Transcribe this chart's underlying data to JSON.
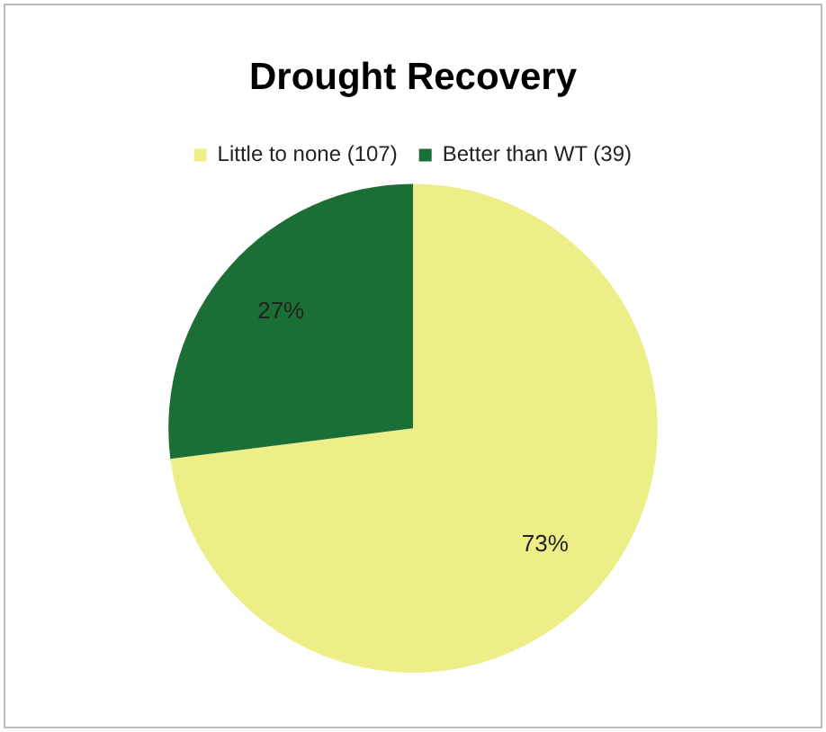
{
  "chart_data": {
    "type": "pie",
    "title": "Drought Recovery",
    "categories": [
      "Little to none (107)",
      "Better than WT (39)"
    ],
    "values": [
      73,
      27
    ],
    "colors": [
      "#eeee88",
      "#1b6e34"
    ],
    "value_labels": [
      "73%",
      "27%"
    ],
    "legend": "top"
  }
}
